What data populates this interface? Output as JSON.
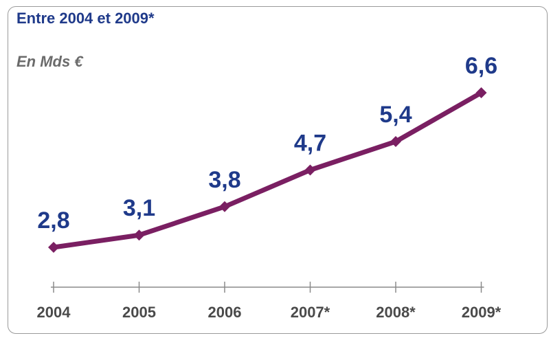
{
  "chart_data": {
    "type": "line",
    "title": "Entre 2004 et 2009*",
    "subtitle": "En Mds €",
    "categories": [
      "2004",
      "2005",
      "2006",
      "2007*",
      "2008*",
      "2009*"
    ],
    "values": [
      2.8,
      3.1,
      3.8,
      4.7,
      5.4,
      6.6
    ],
    "data_labels": [
      "2,8",
      "3,1",
      "3,8",
      "4,7",
      "5,4",
      "6,6"
    ],
    "xlabel": "",
    "ylabel": "",
    "grid": false,
    "legend": "none",
    "line_color": "#7a1f62",
    "label_color": "#1f3a8a"
  }
}
